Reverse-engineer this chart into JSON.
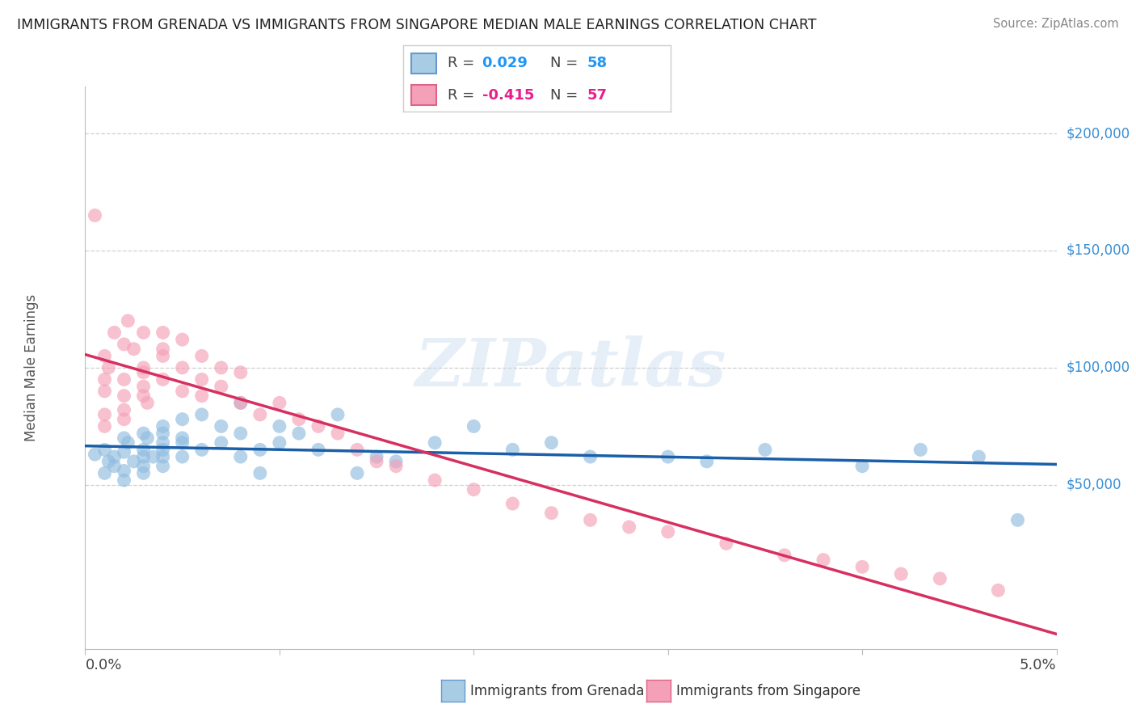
{
  "title": "IMMIGRANTS FROM GRENADA VS IMMIGRANTS FROM SINGAPORE MEDIAN MALE EARNINGS CORRELATION CHART",
  "source": "Source: ZipAtlas.com",
  "ylabel": "Median Male Earnings",
  "xlim": [
    0.0,
    0.05
  ],
  "ylim": [
    -20000,
    220000
  ],
  "background_color": "#ffffff",
  "grid_color": "#d0d0d0",
  "watermark": "ZIPatlas",
  "blue_scatter_color": "#90bce0",
  "blue_line_color": "#1a5fa8",
  "pink_scatter_color": "#f4a0b8",
  "pink_line_color": "#d63060",
  "blue_R": "0.029",
  "blue_N": "58",
  "pink_R": "-0.415",
  "pink_N": "57",
  "blue_x": [
    0.0005,
    0.001,
    0.001,
    0.0012,
    0.0015,
    0.0015,
    0.002,
    0.002,
    0.002,
    0.002,
    0.0022,
    0.0025,
    0.003,
    0.003,
    0.003,
    0.003,
    0.003,
    0.0032,
    0.0035,
    0.004,
    0.004,
    0.004,
    0.004,
    0.004,
    0.004,
    0.005,
    0.005,
    0.005,
    0.005,
    0.006,
    0.006,
    0.007,
    0.007,
    0.008,
    0.008,
    0.008,
    0.009,
    0.009,
    0.01,
    0.01,
    0.011,
    0.012,
    0.013,
    0.014,
    0.015,
    0.016,
    0.018,
    0.02,
    0.022,
    0.024,
    0.026,
    0.03,
    0.032,
    0.035,
    0.04,
    0.043,
    0.046,
    0.048
  ],
  "blue_y": [
    63000,
    65000,
    55000,
    60000,
    58000,
    62000,
    56000,
    70000,
    64000,
    52000,
    68000,
    60000,
    72000,
    65000,
    58000,
    55000,
    62000,
    70000,
    62000,
    75000,
    65000,
    62000,
    68000,
    72000,
    58000,
    78000,
    68000,
    62000,
    70000,
    80000,
    65000,
    75000,
    68000,
    72000,
    85000,
    62000,
    65000,
    55000,
    68000,
    75000,
    72000,
    65000,
    80000,
    55000,
    62000,
    60000,
    68000,
    75000,
    65000,
    68000,
    62000,
    62000,
    60000,
    65000,
    58000,
    65000,
    62000,
    35000
  ],
  "pink_x": [
    0.0005,
    0.001,
    0.001,
    0.001,
    0.001,
    0.001,
    0.0012,
    0.0015,
    0.002,
    0.002,
    0.002,
    0.002,
    0.002,
    0.0022,
    0.0025,
    0.003,
    0.003,
    0.003,
    0.003,
    0.003,
    0.0032,
    0.004,
    0.004,
    0.004,
    0.004,
    0.005,
    0.005,
    0.005,
    0.006,
    0.006,
    0.006,
    0.007,
    0.007,
    0.008,
    0.008,
    0.009,
    0.01,
    0.011,
    0.012,
    0.013,
    0.014,
    0.015,
    0.016,
    0.018,
    0.02,
    0.022,
    0.024,
    0.026,
    0.028,
    0.03,
    0.033,
    0.036,
    0.038,
    0.04,
    0.042,
    0.044,
    0.047
  ],
  "pink_y": [
    165000,
    80000,
    90000,
    95000,
    75000,
    105000,
    100000,
    115000,
    110000,
    95000,
    88000,
    78000,
    82000,
    120000,
    108000,
    98000,
    100000,
    115000,
    92000,
    88000,
    85000,
    115000,
    108000,
    95000,
    105000,
    112000,
    100000,
    90000,
    105000,
    95000,
    88000,
    100000,
    92000,
    98000,
    85000,
    80000,
    85000,
    78000,
    75000,
    72000,
    65000,
    60000,
    58000,
    52000,
    48000,
    42000,
    38000,
    35000,
    32000,
    30000,
    25000,
    20000,
    18000,
    15000,
    12000,
    10000,
    5000
  ],
  "ytick_positions": [
    50000,
    100000,
    150000,
    200000
  ],
  "ytick_labels": [
    "$50,000",
    "$100,000",
    "$150,000",
    "$200,000"
  ],
  "right_ytick_color": "#3a8fd4"
}
